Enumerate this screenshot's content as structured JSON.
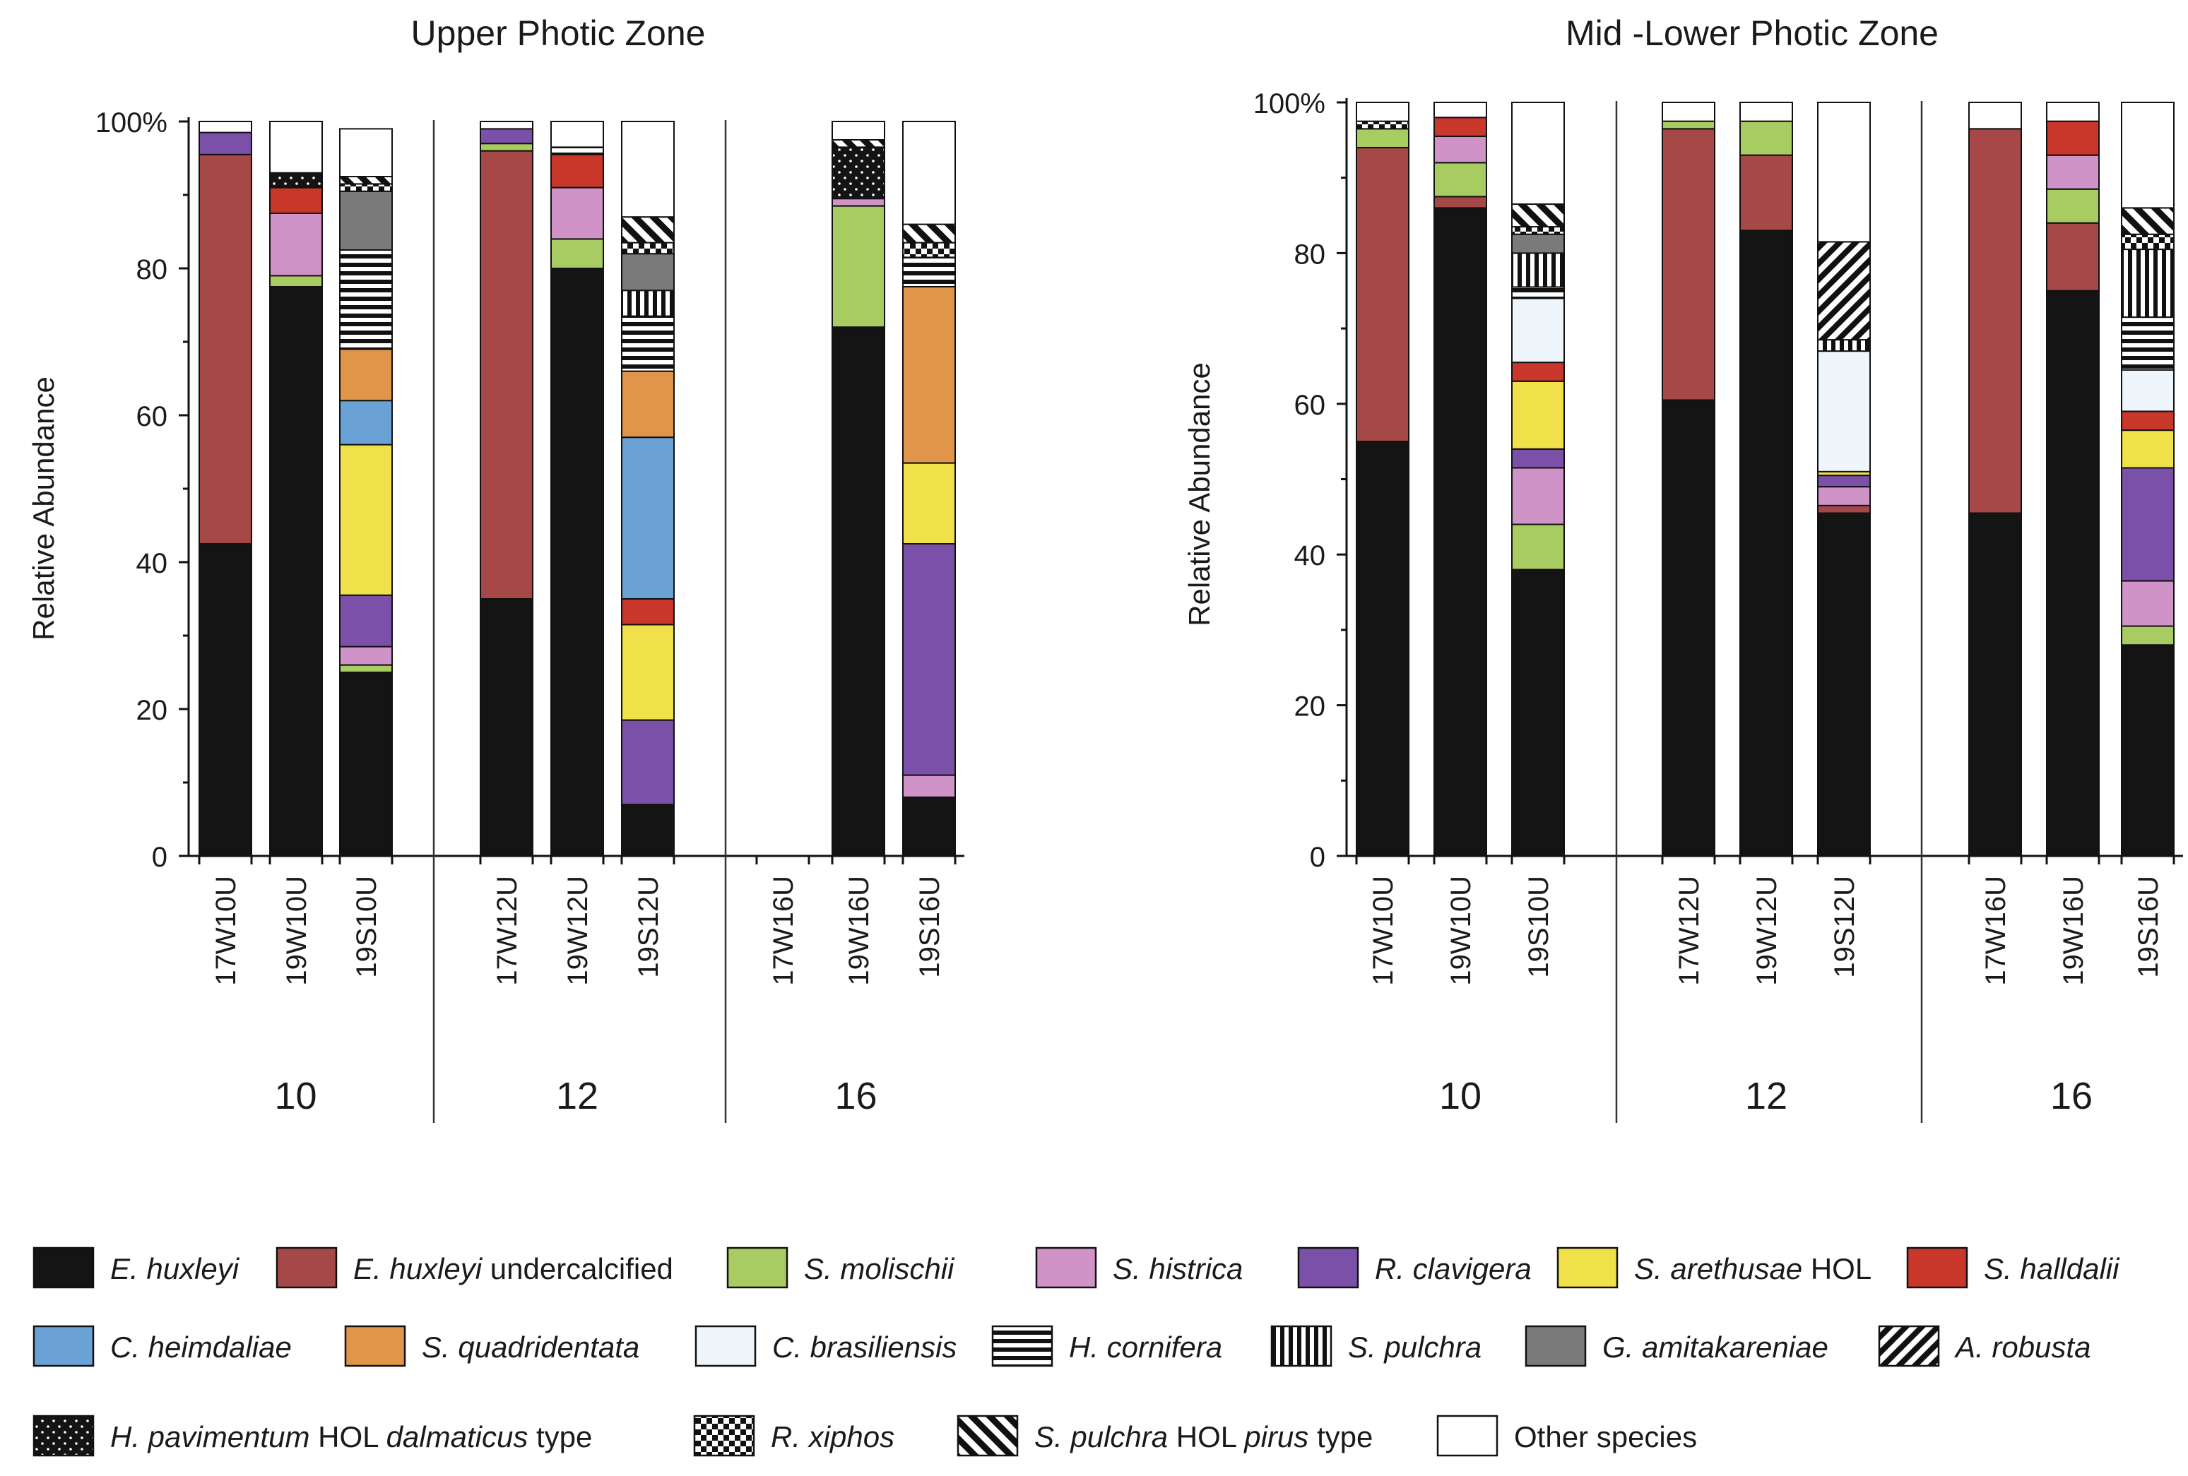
{
  "figure": {
    "species": [
      {
        "name": "E. huxleyi",
        "italic": "E. huxleyi",
        "suffix": "",
        "fill": "#141414",
        "pattern": "solid"
      },
      {
        "name": "E. huxleyi undercalcified",
        "italic": "E. huxleyi",
        "suffix": " undercalcified",
        "fill": "#a64848",
        "pattern": "solid"
      },
      {
        "name": "S. molischii",
        "italic": "S. molischii",
        "suffix": "",
        "fill": "#a9cc62",
        "pattern": "solid"
      },
      {
        "name": "S. histrica",
        "italic": "S. histrica",
        "suffix": "",
        "fill": "#cf93c8",
        "pattern": "solid"
      },
      {
        "name": "R. clavigera",
        "italic": "R. clavigera",
        "suffix": "",
        "fill": "#7b50a8",
        "pattern": "solid"
      },
      {
        "name": "S. arethusae HOL",
        "italic": "S. arethusae",
        "suffix": " HOL",
        "fill": "#f0e04a",
        "pattern": "solid"
      },
      {
        "name": "S. halldalii",
        "italic": "S. halldalii",
        "suffix": "",
        "fill": "#c8372a",
        "pattern": "solid"
      },
      {
        "name": "C. heimdaliae",
        "italic": "C. heimdaliae",
        "suffix": "",
        "fill": "#6aa2d6",
        "pattern": "solid"
      },
      {
        "name": "S. quadridentata",
        "italic": "S. quadridentata",
        "suffix": "",
        "fill": "#e0954a",
        "pattern": "solid"
      },
      {
        "name": "C. brasiliensis",
        "italic": "C. brasiliensis",
        "suffix": "",
        "fill": "#eef6fb",
        "pattern": "solid"
      },
      {
        "name": "H. cornifera",
        "italic": "H. cornifera",
        "suffix": "",
        "fill": "#ffffff",
        "pattern": "hlines"
      },
      {
        "name": "S. pulchra",
        "italic": "S. pulchra",
        "suffix": "",
        "fill": "#ffffff",
        "pattern": "vlines"
      },
      {
        "name": "G. amitakareniae",
        "italic": "G. amitakareniae",
        "suffix": "",
        "fill": "#7a7a7a",
        "pattern": "solid"
      },
      {
        "name": "A. robusta",
        "italic": "A. robusta",
        "suffix": "",
        "fill": "#ffffff",
        "pattern": "diag"
      },
      {
        "name": "H. pavimentum HOL dalmaticus type",
        "italic": "H. pavimentum",
        "suffix": " HOL ",
        "italic2": "dalmaticus",
        "suffix2": " type",
        "fill": "#141414",
        "pattern": "dots"
      },
      {
        "name": "R. xiphos",
        "italic": "R. xiphos",
        "suffix": "",
        "fill": "#ffffff",
        "pattern": "checker"
      },
      {
        "name": "S. pulchra HOL pirus type",
        "italic": "S. pulchra",
        "suffix": " HOL ",
        "italic2": "pirus",
        "suffix2": " type",
        "fill": "#ffffff",
        "pattern": "diagthick"
      },
      {
        "name": "Other species",
        "italic": "",
        "suffix": "Other species",
        "fill": "#ffffff",
        "pattern": "solid"
      }
    ],
    "legend_rows": [
      [
        0,
        1,
        2,
        3,
        4,
        5,
        6
      ],
      [
        7,
        8,
        9,
        10,
        11,
        12,
        13
      ],
      [
        14,
        15,
        16,
        17
      ]
    ]
  },
  "chart_data": [
    {
      "type": "bar",
      "stacked": true,
      "title": "Upper Photic Zone",
      "ylabel": "Relative Abundance",
      "ylim": [
        0,
        100
      ],
      "yticks": [
        "0",
        "20",
        "40",
        "60",
        "80",
        "100%"
      ],
      "groups": [
        {
          "label": "10",
          "samples": [
            {
              "name": "17W10U",
              "segments": [
                42.5,
                53,
                0,
                0,
                3,
                0,
                0,
                0,
                0,
                0,
                0,
                0,
                0,
                0,
                0,
                0,
                0,
                1.5
              ]
            },
            {
              "name": "19W10U",
              "segments": [
                77.5,
                0,
                1.5,
                8.5,
                0,
                0,
                3.5,
                0,
                0,
                0,
                0,
                0,
                0,
                0,
                2,
                0,
                0,
                7
              ]
            },
            {
              "name": "19S10U",
              "segments": [
                25,
                0,
                1,
                2.5,
                7,
                20.5,
                0,
                6,
                7,
                0,
                13.5,
                0,
                8,
                0,
                0,
                1,
                1,
                6.5
              ]
            }
          ]
        },
        {
          "label": "12",
          "samples": [
            {
              "name": "17W12U",
              "segments": [
                35,
                61,
                1,
                0,
                2,
                0,
                0,
                0,
                0,
                0,
                0,
                0,
                0,
                0,
                0,
                0,
                0,
                1
              ]
            },
            {
              "name": "19W12U",
              "segments": [
                80,
                0,
                4,
                7,
                0,
                0,
                4.5,
                0,
                0,
                0,
                1,
                0,
                0,
                0,
                0,
                0,
                0,
                3.5
              ]
            },
            {
              "name": "19S12U",
              "segments": [
                7,
                0,
                0,
                0,
                11.5,
                13,
                3.5,
                22,
                9,
                0,
                7.5,
                3.5,
                5,
                0,
                0,
                1.5,
                3.5,
                13
              ]
            }
          ]
        },
        {
          "label": "16",
          "samples": [
            {
              "name": "17W16U",
              "segments": []
            },
            {
              "name": "19W16U",
              "segments": [
                72,
                0,
                16.5,
                1,
                0,
                0,
                0,
                0,
                0,
                0,
                0,
                0,
                0,
                0,
                7,
                0,
                1,
                2.5
              ]
            },
            {
              "name": "19S16U",
              "segments": [
                8,
                0,
                0,
                3,
                31.5,
                11,
                0,
                0,
                24,
                0,
                4,
                0,
                0,
                0,
                0,
                2,
                2.5,
                14
              ]
            }
          ]
        }
      ]
    },
    {
      "type": "bar",
      "stacked": true,
      "title": "Mid -Lower Photic Zone",
      "ylabel": "Relative Abundance",
      "ylim": [
        0,
        100
      ],
      "yticks": [
        "0",
        "20",
        "40",
        "60",
        "80",
        "100%"
      ],
      "groups": [
        {
          "label": "10",
          "samples": [
            {
              "name": "17W10U",
              "segments": [
                55,
                39,
                2.5,
                0,
                0,
                0,
                0,
                0,
                0,
                0,
                0,
                0,
                0,
                0,
                0,
                1,
                0,
                2.5
              ]
            },
            {
              "name": "19W10U",
              "segments": [
                86,
                1.5,
                4.5,
                3.5,
                0,
                0,
                2.5,
                0,
                0,
                0,
                0,
                0,
                0,
                0,
                0,
                0,
                0,
                2
              ]
            },
            {
              "name": "19S10U",
              "segments": [
                38,
                0,
                6,
                7.5,
                2.5,
                9,
                2.5,
                0,
                0,
                8.5,
                1.5,
                4.5,
                2.5,
                0,
                0,
                1,
                3,
                13.5
              ]
            }
          ]
        },
        {
          "label": "12",
          "samples": [
            {
              "name": "17W12U",
              "segments": [
                60.5,
                36,
                1,
                0,
                0,
                0,
                0,
                0,
                0,
                0,
                0,
                0,
                0,
                0,
                0,
                0,
                0,
                2.5
              ]
            },
            {
              "name": "19W12U",
              "segments": [
                83,
                10,
                4.5,
                0,
                0,
                0,
                0,
                0,
                0,
                0,
                0,
                0,
                0,
                0,
                0,
                0,
                0,
                2.5
              ]
            },
            {
              "name": "19S12U",
              "segments": [
                45.5,
                1,
                0,
                2.5,
                1.5,
                0.5,
                0,
                0,
                0,
                16,
                0,
                1.5,
                0,
                13,
                0,
                0,
                0,
                18.5
              ]
            }
          ]
        },
        {
          "label": "16",
          "samples": [
            {
              "name": "17W16U",
              "segments": [
                45.5,
                51,
                0,
                0,
                0,
                0,
                0,
                0,
                0,
                0,
                0,
                0,
                0,
                0,
                0,
                0,
                0,
                3.5
              ]
            },
            {
              "name": "19W16U",
              "segments": [
                75,
                9,
                4.5,
                4.5,
                0,
                0,
                4.5,
                0,
                0,
                0,
                0,
                0,
                0,
                0,
                0,
                0,
                0,
                2.5
              ]
            },
            {
              "name": "19S16U",
              "segments": [
                28,
                0,
                2.5,
                6,
                15,
                5,
                2.5,
                0,
                0,
                5.5,
                7,
                9,
                0,
                0,
                0,
                2,
                3.5,
                14
              ]
            }
          ]
        }
      ]
    }
  ]
}
